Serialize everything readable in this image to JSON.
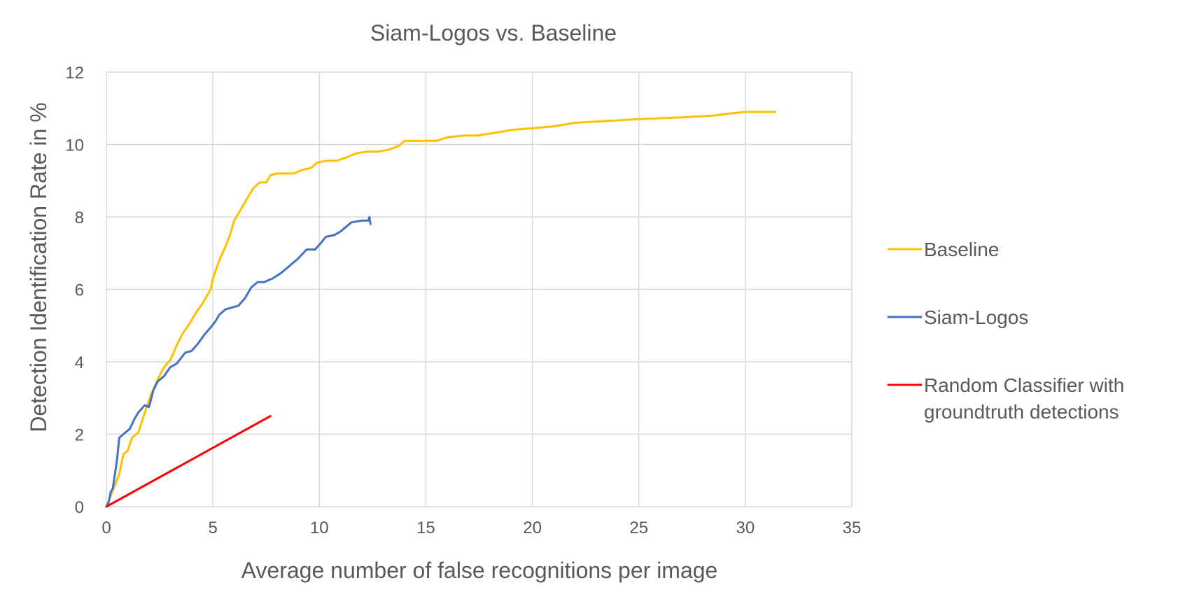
{
  "chart_data": {
    "type": "line",
    "title": "Siam-Logos vs. Baseline",
    "xlabel": "Average number of false recognitions per image",
    "ylabel": "Detection Identification Rate in %",
    "xlim": [
      0,
      35
    ],
    "ylim": [
      0,
      12
    ],
    "xticks": [
      0,
      5,
      10,
      15,
      20,
      25,
      30,
      35
    ],
    "yticks": [
      0,
      2,
      4,
      6,
      8,
      10,
      12
    ],
    "grid": true,
    "legend_position": "right",
    "series": [
      {
        "name": "Baseline",
        "color": "#FFC000",
        "points": [
          [
            0,
            0
          ],
          [
            0.2,
            0.3
          ],
          [
            0.4,
            0.6
          ],
          [
            0.6,
            0.9
          ],
          [
            0.8,
            1.45
          ],
          [
            1.0,
            1.55
          ],
          [
            1.2,
            1.9
          ],
          [
            1.5,
            2.05
          ],
          [
            1.8,
            2.6
          ],
          [
            2.1,
            3.1
          ],
          [
            2.4,
            3.5
          ],
          [
            2.7,
            3.85
          ],
          [
            3.0,
            4.05
          ],
          [
            3.3,
            4.45
          ],
          [
            3.6,
            4.8
          ],
          [
            3.9,
            5.05
          ],
          [
            4.2,
            5.35
          ],
          [
            4.5,
            5.6
          ],
          [
            4.9,
            6.0
          ],
          [
            5.0,
            6.3
          ],
          [
            5.3,
            6.8
          ],
          [
            5.6,
            7.2
          ],
          [
            5.8,
            7.5
          ],
          [
            6.0,
            7.9
          ],
          [
            6.3,
            8.2
          ],
          [
            6.6,
            8.5
          ],
          [
            6.9,
            8.8
          ],
          [
            7.2,
            8.95
          ],
          [
            7.5,
            8.95
          ],
          [
            7.7,
            9.15
          ],
          [
            8.0,
            9.2
          ],
          [
            8.8,
            9.2
          ],
          [
            9.2,
            9.3
          ],
          [
            9.6,
            9.35
          ],
          [
            9.9,
            9.5
          ],
          [
            10.3,
            9.55
          ],
          [
            10.8,
            9.55
          ],
          [
            11.3,
            9.65
          ],
          [
            11.7,
            9.75
          ],
          [
            12.2,
            9.8
          ],
          [
            12.7,
            9.8
          ],
          [
            13.2,
            9.85
          ],
          [
            13.7,
            9.95
          ],
          [
            14.0,
            10.1
          ],
          [
            15.5,
            10.1
          ],
          [
            16.0,
            10.2
          ],
          [
            16.8,
            10.25
          ],
          [
            17.4,
            10.25
          ],
          [
            18.0,
            10.3
          ],
          [
            19.0,
            10.4
          ],
          [
            20.0,
            10.45
          ],
          [
            21.0,
            10.5
          ],
          [
            22.0,
            10.6
          ],
          [
            23.5,
            10.65
          ],
          [
            25.0,
            10.7
          ],
          [
            27.0,
            10.75
          ],
          [
            28.5,
            10.8
          ],
          [
            29.2,
            10.85
          ],
          [
            30.0,
            10.9
          ],
          [
            31.4,
            10.9
          ]
        ]
      },
      {
        "name": "Siam-Logos",
        "color": "#4472C4",
        "points": [
          [
            0,
            0
          ],
          [
            0.1,
            0.1
          ],
          [
            0.2,
            0.4
          ],
          [
            0.3,
            0.5
          ],
          [
            0.4,
            0.9
          ],
          [
            0.5,
            1.3
          ],
          [
            0.6,
            1.9
          ],
          [
            0.8,
            2.0
          ],
          [
            1.1,
            2.15
          ],
          [
            1.3,
            2.4
          ],
          [
            1.5,
            2.6
          ],
          [
            1.8,
            2.8
          ],
          [
            2.0,
            2.75
          ],
          [
            2.2,
            3.2
          ],
          [
            2.4,
            3.45
          ],
          [
            2.7,
            3.6
          ],
          [
            3.0,
            3.85
          ],
          [
            3.3,
            3.95
          ],
          [
            3.5,
            4.1
          ],
          [
            3.7,
            4.25
          ],
          [
            4.0,
            4.3
          ],
          [
            4.3,
            4.5
          ],
          [
            4.6,
            4.75
          ],
          [
            4.9,
            4.95
          ],
          [
            5.1,
            5.1
          ],
          [
            5.3,
            5.3
          ],
          [
            5.6,
            5.45
          ],
          [
            5.9,
            5.5
          ],
          [
            6.2,
            5.55
          ],
          [
            6.5,
            5.75
          ],
          [
            6.8,
            6.05
          ],
          [
            7.1,
            6.2
          ],
          [
            7.4,
            6.2
          ],
          [
            7.8,
            6.3
          ],
          [
            8.2,
            6.45
          ],
          [
            8.6,
            6.65
          ],
          [
            9.0,
            6.85
          ],
          [
            9.4,
            7.1
          ],
          [
            9.8,
            7.1
          ],
          [
            10.1,
            7.3
          ],
          [
            10.3,
            7.45
          ],
          [
            10.7,
            7.5
          ],
          [
            11.0,
            7.6
          ],
          [
            11.5,
            7.85
          ],
          [
            12.0,
            7.9
          ],
          [
            12.3,
            7.9
          ],
          [
            12.35,
            8.0
          ],
          [
            12.4,
            7.8
          ]
        ]
      },
      {
        "name": "Random Classifier with groundtruth detections",
        "name_lines": [
          "Random Classifier with",
          "groundtruth detections"
        ],
        "color": "#FF0000",
        "points": [
          [
            0,
            0
          ],
          [
            7.7,
            2.5
          ]
        ]
      }
    ]
  }
}
